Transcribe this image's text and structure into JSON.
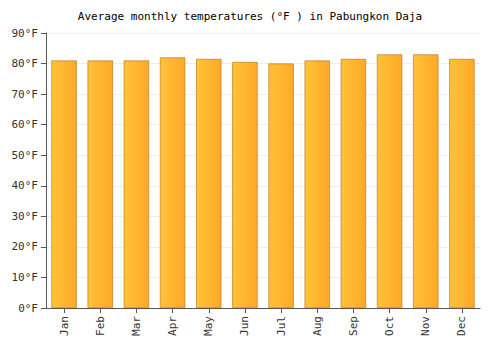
{
  "chart_data": {
    "type": "bar",
    "title": "Average monthly temperatures (°F ) in Pabungkon Daja",
    "categories": [
      "Jan",
      "Feb",
      "Mar",
      "Apr",
      "May",
      "Jun",
      "Jul",
      "Aug",
      "Sep",
      "Oct",
      "Nov",
      "Dec"
    ],
    "values": [
      81,
      81,
      81,
      82,
      81.5,
      80.5,
      80,
      81,
      81.5,
      83,
      83,
      81.5
    ],
    "color": "#ffa929",
    "ylim": [
      0,
      90
    ],
    "yticks": [
      {
        "value": 0,
        "label": "0°F"
      },
      {
        "value": 10,
        "label": "10°F"
      },
      {
        "value": 20,
        "label": "20°F"
      },
      {
        "value": 30,
        "label": "30°F"
      },
      {
        "value": 40,
        "label": "40°F"
      },
      {
        "value": 50,
        "label": "50°F"
      },
      {
        "value": 60,
        "label": "60°F"
      },
      {
        "value": 70,
        "label": "70°F"
      },
      {
        "value": 80,
        "label": "80°F"
      },
      {
        "value": 90,
        "label": "90°F"
      }
    ],
    "grid": true
  }
}
